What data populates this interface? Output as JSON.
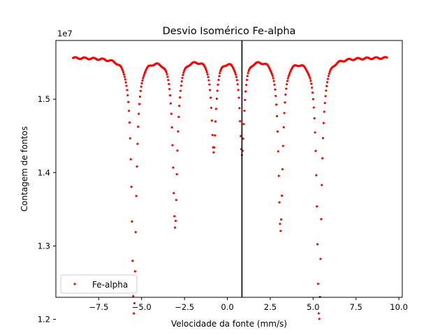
{
  "chart_data": {
    "type": "scatter",
    "title": "Desvio Isomérico Fe-alpha",
    "xlabel": "Velocidade da fonte (mm/s)",
    "ylabel": "Contagem de fontos",
    "y_offset_text": "1e7",
    "xlim": [
      -10.0,
      10.2
    ],
    "ylim": [
      12.3,
      15.8
    ],
    "y_scale_note": "values in units of 1e6 (axis multiplier 1e7)",
    "xticks": [
      -7.5,
      -5.0,
      -2.5,
      0.0,
      2.5,
      5.0,
      7.5,
      10.0
    ],
    "xtick_labels": [
      "−7.5",
      "−5.0",
      "−2.5",
      "0.0",
      "2.5",
      "5.0",
      "7.5",
      "10.0"
    ],
    "yticks": [
      12.0,
      13.0,
      14.0,
      15.0
    ],
    "ytick_labels": [
      "1.2",
      "1.3",
      "1.4",
      "1.5"
    ],
    "grid": false,
    "legend": {
      "location": "lower-left",
      "entries": [
        "Fe-alpha"
      ]
    },
    "vline_x": 0.85,
    "series": [
      {
        "name": "Fe-alpha",
        "color": "#ff0000",
        "marker_size": 2.2,
        "x_range": [
          -9.0,
          9.3
        ],
        "baseline": 15.57,
        "dips": [
          {
            "center": -5.45,
            "depth": 3.47,
            "width": 0.15
          },
          {
            "center": -3.05,
            "depth": 2.31,
            "width": 0.15
          },
          {
            "center": -0.8,
            "depth": 1.27,
            "width": 0.15
          },
          {
            "center": 0.85,
            "depth": 1.3,
            "width": 0.15
          },
          {
            "center": 3.1,
            "depth": 2.33,
            "width": 0.15
          },
          {
            "center": 5.35,
            "depth": 3.57,
            "width": 0.15
          }
        ]
      }
    ]
  }
}
